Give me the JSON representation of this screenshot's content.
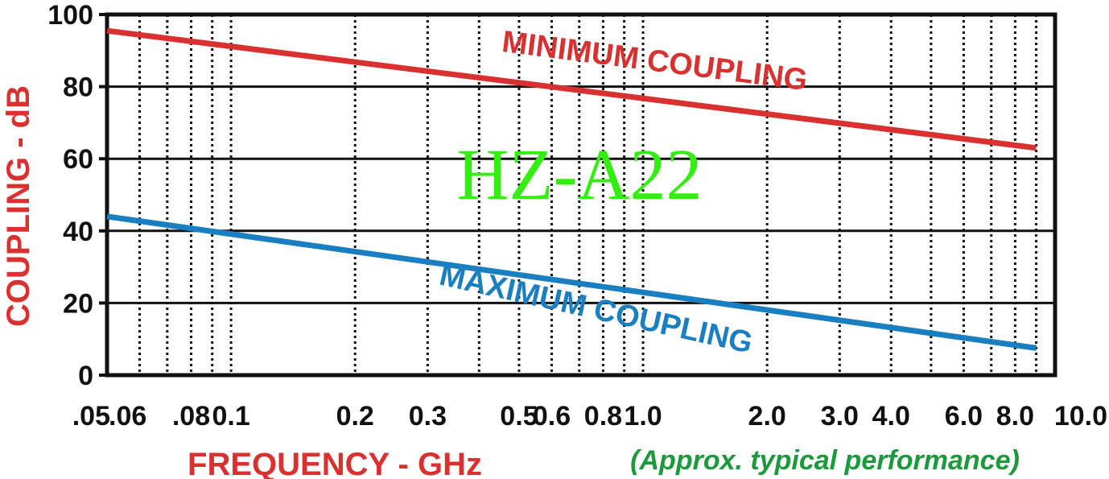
{
  "chart_data": {
    "type": "line",
    "x_scale": "log",
    "grid": true,
    "xlabel": "FREQUENCY - GHz",
    "ylabel": "COUPLING - dB",
    "ylim": [
      0,
      100
    ],
    "xlim": [
      0.05,
      10.0
    ],
    "x_ticks": [
      {
        "value": 0.05,
        "label": ".05"
      },
      {
        "value": 0.06,
        "label": ".06"
      },
      {
        "value": 0.08,
        "label": ".08"
      },
      {
        "value": 0.1,
        "label": "0.1"
      },
      {
        "value": 0.2,
        "label": "0.2"
      },
      {
        "value": 0.3,
        "label": "0.3"
      },
      {
        "value": 0.5,
        "label": "0.5"
      },
      {
        "value": 0.6,
        "label": "0.6"
      },
      {
        "value": 0.8,
        "label": "0.8"
      },
      {
        "value": 1.0,
        "label": "1.0"
      },
      {
        "value": 2.0,
        "label": "2.0"
      },
      {
        "value": 3.0,
        "label": "3.0"
      },
      {
        "value": 4.0,
        "label": "4.0"
      },
      {
        "value": 6.0,
        "label": "6.0"
      },
      {
        "value": 8.0,
        "label": "8.0"
      },
      {
        "value": 10.0,
        "label": "10.0"
      }
    ],
    "y_ticks": [
      {
        "value": 0,
        "label": "0"
      },
      {
        "value": 20,
        "label": "20"
      },
      {
        "value": 40,
        "label": "40"
      },
      {
        "value": 60,
        "label": "60"
      },
      {
        "value": 80,
        "label": "80"
      },
      {
        "value": 100,
        "label": "100"
      }
    ],
    "minor_x_gridlines": [
      0.07,
      0.09,
      0.4,
      0.7,
      0.9,
      5.0,
      7.0,
      9.0
    ],
    "series": [
      {
        "label": "MINIMUM COUPLING",
        "color": "#d93030",
        "x": [
          0.05,
          9.0
        ],
        "y": [
          95.5,
          63
        ]
      },
      {
        "label": "MAXIMUM COUPLING",
        "color": "#1a7fc0",
        "x": [
          0.05,
          9.0
        ],
        "y": [
          44,
          7.5
        ]
      }
    ],
    "annotations": {
      "model": "HZ-A22",
      "model_color": "#33ee11",
      "note": "(Approx. typical performance)",
      "note_color": "#1a9a3a",
      "xlabel_color": "#d93030",
      "ylabel_color": "#d93030"
    }
  }
}
